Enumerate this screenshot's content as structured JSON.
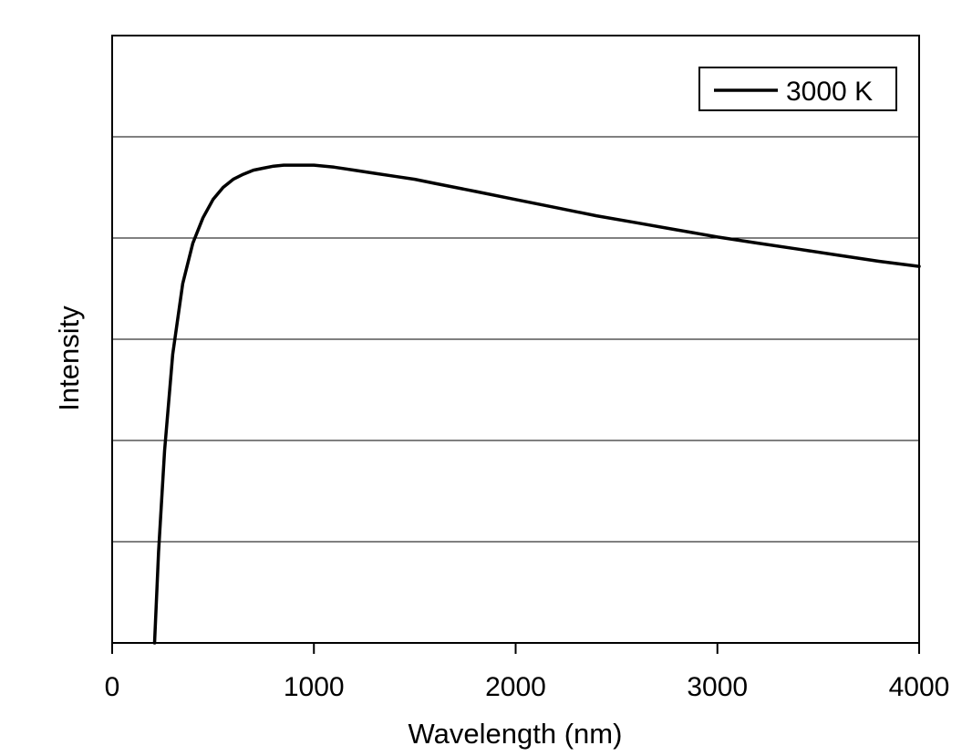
{
  "chart_data": {
    "type": "line",
    "title": "",
    "xlabel": "Wavelength (nm)",
    "ylabel": "Intensity",
    "xlim": [
      0,
      4000
    ],
    "ylim": [
      0,
      6
    ],
    "xticks": [
      {
        "value": 0,
        "label": "0"
      },
      {
        "value": 1000,
        "label": "1000"
      },
      {
        "value": 2000,
        "label": "2000"
      },
      {
        "value": 3000,
        "label": "3000"
      },
      {
        "value": 4000,
        "label": "4000"
      }
    ],
    "yticks_shown": false,
    "grid": {
      "horizontal": true,
      "vertical": false,
      "y_lines": [
        1,
        2,
        3,
        4,
        5
      ]
    },
    "legend": {
      "position": "top-right",
      "entries": [
        "3000 K"
      ]
    },
    "series": [
      {
        "name": "3000 K",
        "color": "#000000",
        "x": [
          210,
          230,
          260,
          300,
          350,
          400,
          450,
          500,
          550,
          600,
          650,
          700,
          750,
          800,
          850,
          900,
          950,
          1000,
          1100,
          1200,
          1300,
          1400,
          1500,
          1600,
          1800,
          2000,
          2200,
          2400,
          2600,
          2800,
          3000,
          3200,
          3400,
          3600,
          3800,
          4000
        ],
        "y": [
          0.0,
          0.9,
          1.9,
          2.85,
          3.55,
          3.95,
          4.2,
          4.38,
          4.5,
          4.58,
          4.63,
          4.67,
          4.69,
          4.71,
          4.72,
          4.72,
          4.72,
          4.72,
          4.7,
          4.67,
          4.64,
          4.61,
          4.58,
          4.54,
          4.46,
          4.38,
          4.3,
          4.22,
          4.15,
          4.08,
          4.01,
          3.95,
          3.89,
          3.83,
          3.77,
          3.72
        ]
      }
    ]
  }
}
